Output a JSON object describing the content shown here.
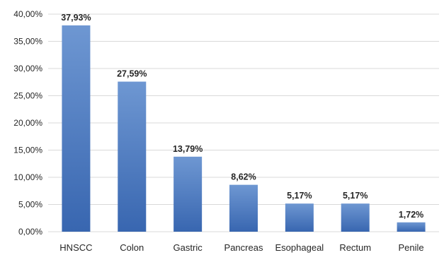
{
  "chart_data": {
    "type": "bar",
    "title": "",
    "xlabel": "",
    "ylabel": "",
    "categories": [
      "HNSCC",
      "Colon",
      "Gastric",
      "Pancreas",
      "Esophageal",
      "Rectum",
      "Penile"
    ],
    "values": [
      37.93,
      27.59,
      13.79,
      8.62,
      5.17,
      5.17,
      1.72
    ],
    "data_labels": [
      "37,93%",
      "27,59%",
      "13,79%",
      "8,62%",
      "5,17%",
      "5,17%",
      "1,72%"
    ],
    "ylim": [
      0,
      40
    ],
    "yticks": [
      0,
      5,
      10,
      15,
      20,
      25,
      30,
      35,
      40
    ],
    "ytick_labels": [
      "0,00%",
      "5,00%",
      "10,00%",
      "15,00%",
      "20,00%",
      "25,00%",
      "30,00%",
      "35,00%",
      "40,00%"
    ],
    "grid": true,
    "legend": "none",
    "colors": {
      "bar_top": "#6e97d2",
      "bar_bottom": "#3866b0",
      "grid": "#d9d9d9",
      "text": "#262626"
    }
  }
}
